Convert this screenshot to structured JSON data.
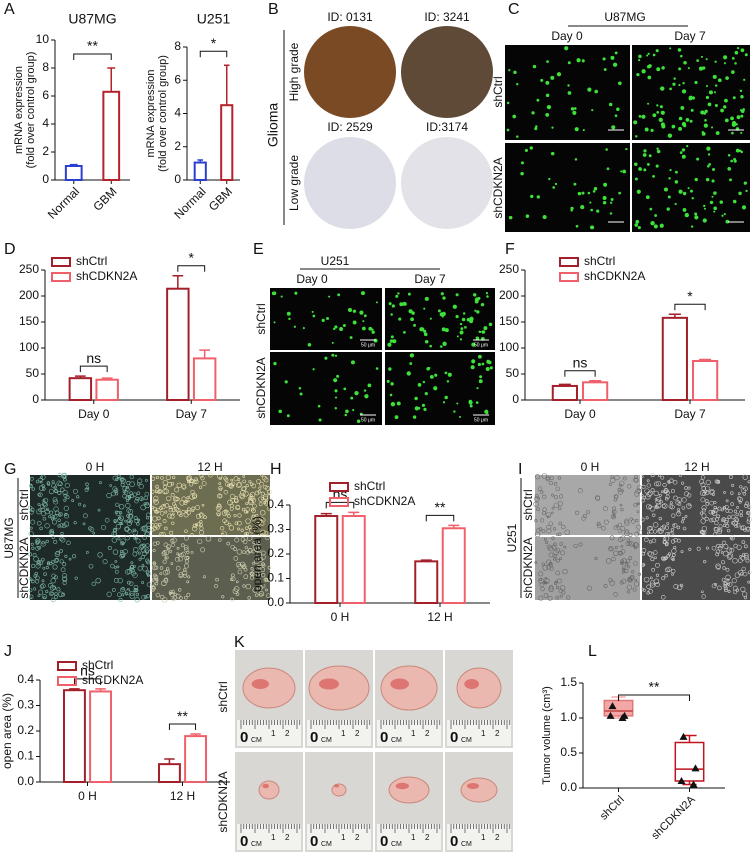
{
  "panel_letters": [
    "A",
    "B",
    "C",
    "D",
    "E",
    "F",
    "G",
    "H",
    "I",
    "J",
    "K",
    "L"
  ],
  "chart_data": [
    {
      "type": "bar",
      "title": "U87MG",
      "ylabel": [
        "mRNA expression",
        "(fold over control group)"
      ],
      "categories": [
        "Normal",
        "GBM"
      ],
      "values": [
        1.0,
        6.3
      ],
      "errors": [
        0.1,
        1.7
      ],
      "colors": [
        "#2b3fd0",
        "#b5222a"
      ],
      "ylim": [
        0,
        10
      ],
      "yticks": [
        0,
        2,
        4,
        6,
        8,
        10
      ],
      "annotations": [
        "**"
      ]
    },
    {
      "type": "bar",
      "title": "U251",
      "ylabel": [
        "mRNA expression",
        "(fold over control group)"
      ],
      "categories": [
        "Normal",
        "GBM"
      ],
      "values": [
        1.05,
        4.5
      ],
      "errors": [
        0.15,
        2.4
      ],
      "colors": [
        "#2b3fd0",
        "#b5222a"
      ],
      "ylim": [
        0,
        8
      ],
      "yticks": [
        0,
        2,
        4,
        6,
        8
      ],
      "annotations": [
        "*"
      ]
    },
    {
      "type": "grouped-bar",
      "categories": [
        "Day 0",
        "Day 7"
      ],
      "series": [
        {
          "name": "shCtrl",
          "color": "#a3202a",
          "values": [
            42,
            214
          ],
          "errors": [
            4,
            25
          ]
        },
        {
          "name": "shCDKN2A",
          "color": "#f0606a",
          "values": [
            39,
            80
          ],
          "errors": [
            3,
            16
          ]
        }
      ],
      "ylim": [
        0,
        250
      ],
      "yticks": [
        0,
        50,
        100,
        150,
        200,
        250
      ],
      "annotations": [
        "ns",
        "*"
      ]
    },
    {
      "type": "grouped-bar",
      "categories": [
        "Day 0",
        "Day 7"
      ],
      "series": [
        {
          "name": "shCtrl",
          "color": "#a3202a",
          "values": [
            27,
            158
          ],
          "errors": [
            3,
            7
          ]
        },
        {
          "name": "shCDKN2A",
          "color": "#f0606a",
          "values": [
            34,
            75
          ],
          "errors": [
            3,
            3
          ]
        }
      ],
      "ylim": [
        0,
        250
      ],
      "yticks": [
        0,
        50,
        100,
        150,
        200,
        250
      ],
      "annotations": [
        "ns",
        "*"
      ]
    },
    {
      "type": "grouped-bar",
      "ylabel": "open area (%)",
      "categories": [
        "0 H",
        "12 H"
      ],
      "series": [
        {
          "name": "shCtrl",
          "color": "#a3202a",
          "values": [
            0.355,
            0.17
          ],
          "errors": [
            0.01,
            0.005
          ]
        },
        {
          "name": "shCDKN2A",
          "color": "#f0606a",
          "values": [
            0.355,
            0.305
          ],
          "errors": [
            0.015,
            0.012
          ]
        }
      ],
      "ylim": [
        0,
        0.4
      ],
      "yticks": [
        {
          "value": 0,
          "label": "0.0"
        },
        0.1,
        0.2,
        0.3,
        0.4
      ],
      "annotations": [
        "ns",
        "**"
      ]
    },
    {
      "type": "grouped-bar",
      "ylabel": "open area (%)",
      "categories": [
        "0 H",
        "12 H"
      ],
      "series": [
        {
          "name": "shCtrl",
          "color": "#a3202a",
          "values": [
            0.36,
            0.07
          ],
          "errors": [
            0.005,
            0.02
          ]
        },
        {
          "name": "shCDKN2A",
          "color": "#f0606a",
          "values": [
            0.355,
            0.18
          ],
          "errors": [
            0.01,
            0.008
          ]
        }
      ],
      "ylim": [
        0,
        0.4
      ],
      "yticks": [
        {
          "value": 0,
          "label": "0.0"
        },
        0.1,
        0.2,
        0.3,
        0.4
      ],
      "annotations": [
        "ns",
        "**"
      ]
    },
    {
      "type": "box",
      "ylabel": "Tumor volume (cm³)",
      "categories": [
        "shCtrl",
        "shCDKN2A"
      ],
      "colors": [
        "#f4a7a7",
        "#c0141e"
      ],
      "boxes": [
        {
          "min": 1.0,
          "q1": 1.03,
          "median": 1.1,
          "q3": 1.25,
          "max": 1.3
        },
        {
          "min": 0.05,
          "q1": 0.1,
          "median": 0.27,
          "q3": 0.65,
          "max": 0.75
        }
      ],
      "points": [
        [
          1.17,
          1.03,
          1.03,
          1.0
        ],
        [
          0.73,
          0.28,
          0.1,
          0.05
        ]
      ],
      "ylim": [
        0,
        1.5
      ],
      "yticks": [
        {
          "value": 0,
          "label": "0.0"
        },
        0.5,
        {
          "value": 1,
          "label": "1.0"
        },
        1.5
      ],
      "annotations": [
        "**"
      ]
    }
  ],
  "panel_B": {
    "ids": [
      "ID: 0131",
      "ID: 3241",
      "ID: 2529",
      "ID:3174"
    ],
    "group": "Glioma",
    "rows": [
      "High grade",
      "Low grade"
    ]
  },
  "panel_C": {
    "cell_line": "U87MG",
    "columns": [
      "Day 0",
      "Day 7"
    ],
    "rows": [
      "shCtrl",
      "shCDKN2A"
    ]
  },
  "panel_E": {
    "cell_line": "U251",
    "columns": [
      "Day 0",
      "Day 7"
    ],
    "rows": [
      "shCtrl",
      "shCDKN2A"
    ],
    "scale_bar": "50 μm"
  },
  "panel_G": {
    "cell_line": "U87MG",
    "columns": [
      "0 H",
      "12 H"
    ],
    "rows": [
      "shCtrl",
      "shCDKN2A"
    ]
  },
  "panel_I": {
    "cell_line": "U251",
    "columns": [
      "0 H",
      "12 H"
    ],
    "rows": [
      "shCtrl",
      "shCDKN2A"
    ]
  },
  "panel_K": {
    "rows": [
      "shCtrl",
      "shCDKN2A"
    ],
    "ruler": [
      "0",
      "CM",
      "1",
      "2"
    ]
  }
}
